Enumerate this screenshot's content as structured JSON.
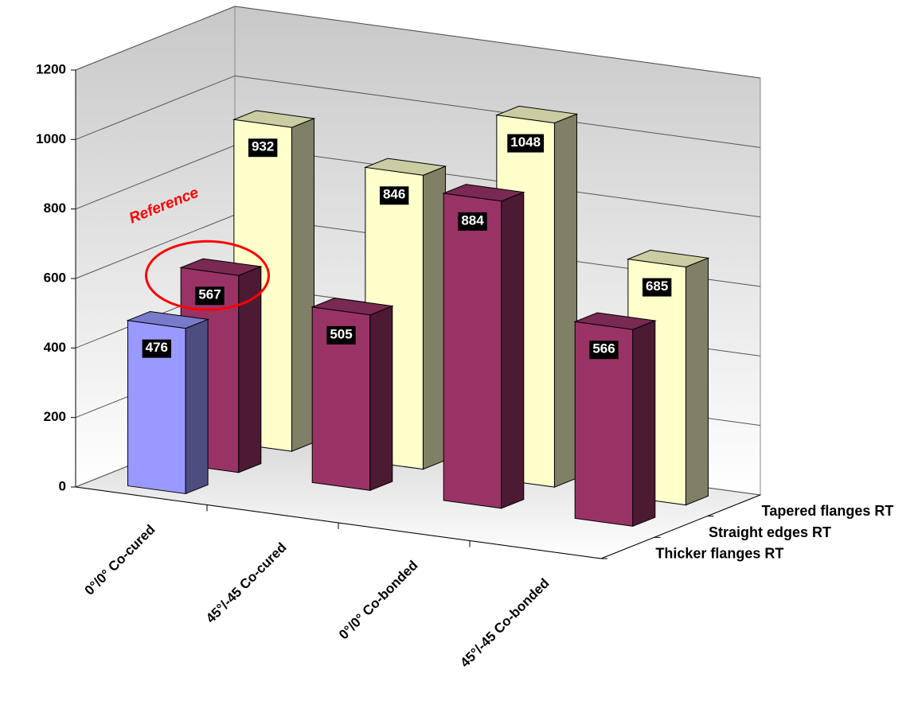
{
  "chart_data": {
    "type": "bar3d",
    "categories": [
      "0°/0° Co-cured",
      "45°/-45 Co-cured",
      "0°/0° Co-bonded",
      "45°/-45 Co-bonded"
    ],
    "series": [
      {
        "name": "Thicker flanges RT",
        "color": "#9999ff",
        "values": [
          476,
          null,
          null,
          null
        ]
      },
      {
        "name": "Straight edges RT",
        "color": "#993366",
        "values": [
          567,
          505,
          884,
          566
        ]
      },
      {
        "name": "Tapered flanges RT",
        "color": "#ffffcc",
        "values": [
          932,
          846,
          1048,
          685
        ]
      }
    ],
    "ylim": [
      0,
      1200
    ],
    "yticks": [
      0,
      200,
      400,
      600,
      800,
      1000,
      1200
    ],
    "grid": true,
    "annotation": "Reference"
  }
}
